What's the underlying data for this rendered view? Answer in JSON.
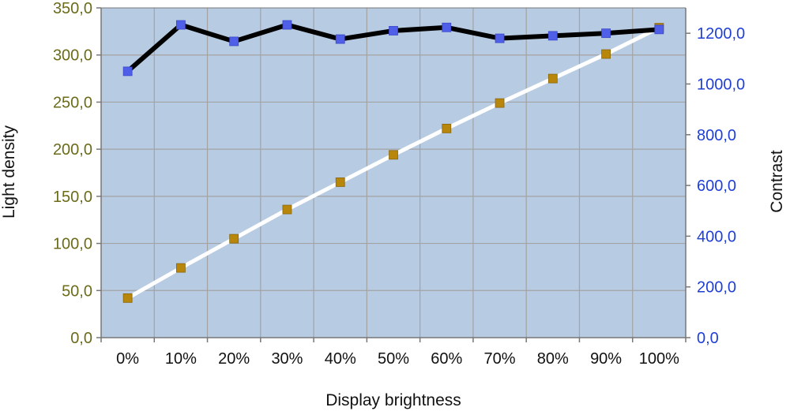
{
  "chart_data": {
    "type": "line",
    "title": "",
    "xlabel": "Display brightness",
    "ylabel": "Light density",
    "y2label": "Contrast",
    "categories": [
      "0%",
      "10%",
      "20%",
      "30%",
      "40%",
      "50%",
      "60%",
      "70%",
      "80%",
      "90%",
      "100%"
    ],
    "ylim": [
      0,
      350
    ],
    "y2lim": [
      0,
      1300
    ],
    "yticks": [
      "0,0",
      "50,0",
      "100,0",
      "150,0",
      "200,0",
      "250,0",
      "300,0",
      "350,0"
    ],
    "y2ticks": [
      "0,0",
      "200,0",
      "400,0",
      "600,0",
      "800,0",
      "1000,0",
      "1200,0"
    ],
    "grid": true,
    "legend": "none",
    "background": "#b7cbe3",
    "series": [
      {
        "axis": "left",
        "line_color": "#ffffff",
        "marker_color": "#b8860b",
        "values": [
          42,
          74,
          105,
          136,
          165,
          194,
          222,
          249,
          275,
          301,
          329
        ]
      },
      {
        "axis": "right",
        "line_color": "#000000",
        "marker_color": "#4f5fe8",
        "values": [
          1050,
          1233,
          1168,
          1233,
          1177,
          1210,
          1223,
          1180,
          1190,
          1200,
          1215
        ]
      }
    ]
  }
}
